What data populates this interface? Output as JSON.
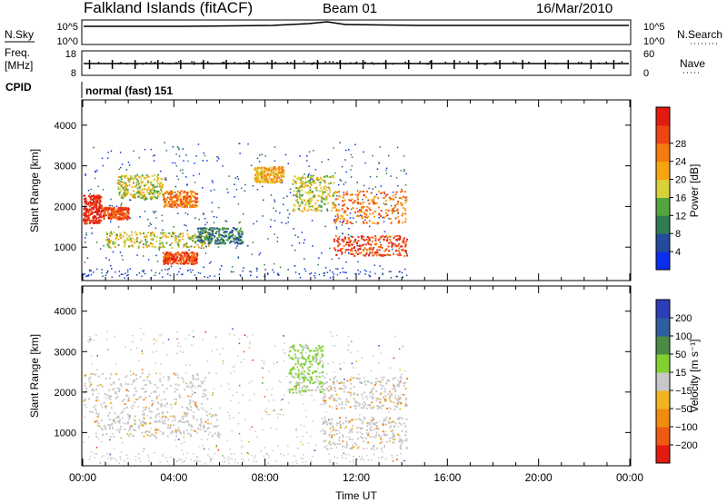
{
  "header": {
    "station": "Falkland Islands (fitACF)",
    "beam": "Beam 01",
    "date": "16/Mar/2010"
  },
  "noise_panel": {
    "left_label": "N.Sky",
    "left_ticks": [
      "10^5",
      "10^0"
    ],
    "right_label": "N.Search",
    "right_ticks": [
      "10^5",
      "10^0"
    ]
  },
  "freq_panel": {
    "left_label_line1": "Freq.",
    "left_label_line2": "[MHz]",
    "left_ticks": [
      "18",
      "8"
    ],
    "right_label": "Nave",
    "right_ticks": [
      "60",
      "0"
    ]
  },
  "cpid": {
    "label": "CPID",
    "value": "normal (fast) 151"
  },
  "colors": {
    "power_scale": [
      "#0a2ef0",
      "#234a9b",
      "#2f7a52",
      "#52a53f",
      "#d8d23a",
      "#f6a50f",
      "#f57a0f",
      "#ef4414",
      "#e21b10"
    ],
    "velocity_scale": [
      "#2d3cb8",
      "#2f5fa0",
      "#4a8a44",
      "#7fd230",
      "#c8c8c8",
      "#f0b41e",
      "#f38a10",
      "#ef5a12",
      "#e21b10"
    ]
  },
  "chart_data": [
    {
      "type": "heatmap",
      "name": "power",
      "xlabel": "",
      "ylabel": "Slant Range [km]",
      "xlim": [
        0,
        24
      ],
      "ylim": [
        200,
        4600
      ],
      "yticks": [
        "1000",
        "2000",
        "3000",
        "4000"
      ],
      "colorbar_label": "Power [dB]",
      "colorbar_ticks": [
        "4",
        "8",
        "12",
        "16",
        "20",
        "24",
        "28"
      ],
      "data_end_hour": 14.2,
      "bands": [
        {
          "t0": 0.0,
          "t1": 0.8,
          "r0": 1600,
          "r1": 2300,
          "level": 8
        },
        {
          "t0": 0.8,
          "t1": 2.0,
          "r0": 1700,
          "r1": 2000,
          "level": 7
        },
        {
          "t0": 1.5,
          "t1": 3.5,
          "r0": 2200,
          "r1": 2800,
          "level": 4
        },
        {
          "t0": 3.5,
          "t1": 5.0,
          "r0": 2000,
          "r1": 2400,
          "level": 6
        },
        {
          "t0": 1.0,
          "t1": 5.5,
          "r0": 1000,
          "r1": 1400,
          "level": 4
        },
        {
          "t0": 3.5,
          "t1": 5.0,
          "r0": 600,
          "r1": 900,
          "level": 7
        },
        {
          "t0": 5.0,
          "t1": 7.0,
          "r0": 1100,
          "r1": 1500,
          "level": 2
        },
        {
          "t0": 7.5,
          "t1": 8.8,
          "r0": 2600,
          "r1": 3000,
          "level": 5
        },
        {
          "t0": 9.2,
          "t1": 11.0,
          "r0": 1900,
          "r1": 2800,
          "level": 4
        },
        {
          "t0": 11.0,
          "t1": 14.2,
          "r0": 800,
          "r1": 1300,
          "level": 7
        },
        {
          "t0": 11.0,
          "t1": 14.2,
          "r0": 1600,
          "r1": 2400,
          "level": 6
        }
      ]
    },
    {
      "type": "heatmap",
      "name": "velocity",
      "xlabel": "Time UT",
      "ylabel": "Slant Range [km]",
      "xlim": [
        0,
        24
      ],
      "ylim": [
        200,
        4600
      ],
      "yticks": [
        "1000",
        "2000",
        "3000",
        "4000"
      ],
      "xticks": [
        "00:00",
        "04:00",
        "08:00",
        "12:00",
        "16:00",
        "20:00",
        "00:00"
      ],
      "colorbar_label": "Velocity [m s⁻¹]",
      "colorbar_ticks": [
        "200",
        "100",
        "50",
        "15",
        "−15",
        "−50",
        "−100",
        "−200"
      ],
      "data_end_hour": 14.2,
      "bands": [
        {
          "t0": 0.0,
          "t1": 5.5,
          "r0": 1500,
          "r1": 2500,
          "value": 0
        },
        {
          "t0": 0.5,
          "t1": 6.0,
          "r0": 900,
          "r1": 1500,
          "value": 0
        },
        {
          "t0": 9.0,
          "t1": 10.5,
          "r0": 2000,
          "r1": 3200,
          "value": 30
        },
        {
          "t0": 10.5,
          "t1": 14.2,
          "r0": 600,
          "r1": 1400,
          "value": 0
        },
        {
          "t0": 10.5,
          "t1": 14.2,
          "r0": 1600,
          "r1": 2400,
          "value": 0
        }
      ]
    }
  ]
}
